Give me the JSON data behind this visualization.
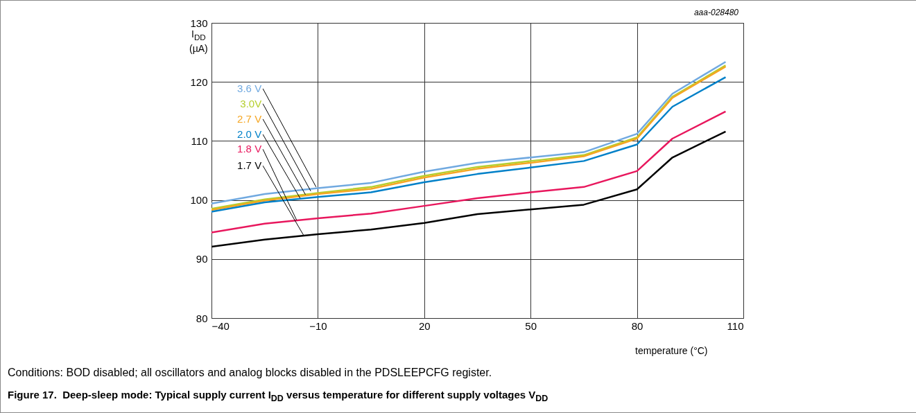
{
  "chart_data": {
    "type": "line",
    "title": "Figure 17.  Deep-sleep mode: Typical supply current I$_{DD}$ versus temperature for different supply voltages V$_{DD}$",
    "ylabel": "I$_{DD}$\n(µA)",
    "xlabel": "temperature (°C)",
    "annotations": [
      "aaa-028480",
      "Conditions: BOD disabled; all oscillators and analog blocks disabled in the PDSLEEPCFG register."
    ],
    "x": [
      -40,
      -25,
      -10,
      5,
      20,
      35,
      50,
      65,
      80,
      90,
      105
    ],
    "xlim": [
      -40,
      110
    ],
    "xticks": [
      -40,
      -10,
      20,
      50,
      80,
      110
    ],
    "ylim": [
      80,
      130
    ],
    "yticks": [
      80,
      90,
      100,
      110,
      120,
      130
    ],
    "grid": true,
    "legend": false,
    "line_style": "solid",
    "series": [
      {
        "name": "3.6 V",
        "color": "#70a9e0",
        "values": [
          99.4,
          101.0,
          102.0,
          102.9,
          104.8,
          106.3,
          107.2,
          108.1,
          111.2,
          118.0,
          123.4
        ]
      },
      {
        "name": "3.0V",
        "color": "#b5cf2e",
        "values": [
          98.5,
          100.1,
          101.2,
          102.2,
          104.1,
          105.6,
          106.6,
          107.6,
          110.6,
          117.5,
          122.8
        ]
      },
      {
        "name": "2.7 V",
        "color": "#f5a623",
        "values": [
          98.3,
          99.9,
          101.0,
          101.9,
          103.8,
          105.3,
          106.3,
          107.4,
          110.4,
          117.3,
          122.6
        ]
      },
      {
        "name": "2.0 V",
        "color": "#0080c8",
        "values": [
          98.0,
          99.6,
          100.5,
          101.3,
          103.0,
          104.4,
          105.5,
          106.6,
          109.4,
          115.8,
          120.8
        ]
      },
      {
        "name": "1.8 V",
        "color": "#e8175d",
        "values": [
          94.5,
          96.0,
          96.9,
          97.7,
          99.0,
          100.3,
          101.3,
          102.2,
          104.9,
          110.4,
          115.0
        ]
      },
      {
        "name": "1.7 V",
        "color": "#000000",
        "values": [
          92.1,
          93.3,
          94.2,
          95.0,
          96.1,
          97.6,
          98.4,
          99.2,
          101.8,
          107.2,
          111.6
        ]
      }
    ]
  }
}
